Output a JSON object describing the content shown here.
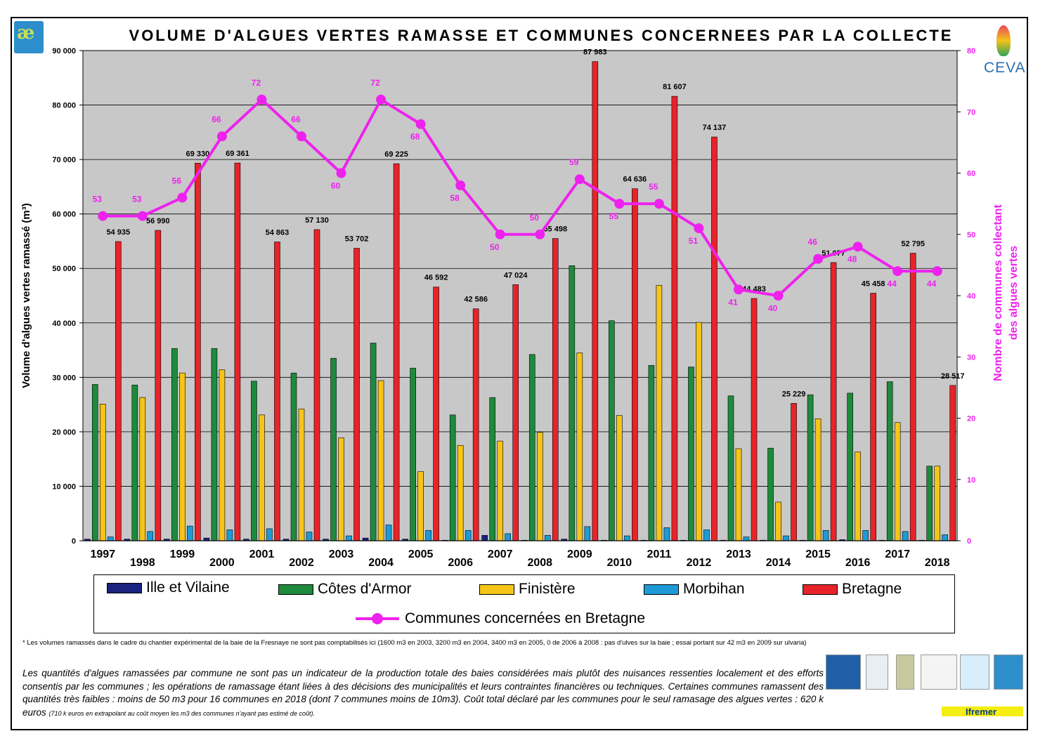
{
  "title": "VOLUME  D'ALGUES VERTES RAMASSE ET COMMUNES CONCERNEES PAR LA COLLECTE",
  "logos": {
    "ceva": "CEVA",
    "ifremer": "Ifremer"
  },
  "colors": {
    "ille": "#1a237e",
    "cotes": "#1e8a3c",
    "finistere": "#f5c518",
    "morbihan": "#1e9bd7",
    "bretagne": "#e8232a",
    "communes": "#ee22ee",
    "plot_bg": "#c8c8c8"
  },
  "chart_data": {
    "type": "bar",
    "title": "VOLUME  D'ALGUES VERTES RAMASSE ET COMMUNES CONCERNEES PAR LA COLLECTE",
    "ylabel": "Volume d'algues vertes ramassé (m³)",
    "y2label_line1": "Nombre de communes collectant",
    "y2label_line2": "des algues vertes",
    "ylim": [
      0,
      90000
    ],
    "y2lim": [
      0,
      80
    ],
    "yticks": [
      "0",
      "10 000",
      "20 000",
      "30 000",
      "40 000",
      "50 000",
      "60 000",
      "70 000",
      "80 000",
      "90 000"
    ],
    "y2ticks": [
      "0",
      "10",
      "20",
      "30",
      "40",
      "50",
      "60",
      "70",
      "80"
    ],
    "categories": [
      "1997",
      "1998",
      "1999",
      "2000",
      "2001",
      "2002",
      "2003",
      "2004",
      "2005",
      "2006",
      "2007",
      "2008",
      "2009",
      "2010",
      "2011",
      "2012",
      "2013",
      "2014",
      "2015",
      "2016",
      "2017",
      "2018"
    ],
    "series": [
      {
        "name": "Ille et Vilaine",
        "color_key": "ille",
        "values": [
          300,
          300,
          300,
          500,
          300,
          300,
          300,
          500,
          300,
          100,
          1000,
          100,
          300,
          100,
          100,
          100,
          100,
          100,
          100,
          200,
          100,
          100
        ]
      },
      {
        "name": "Côtes d'Armor",
        "color_key": "cotes",
        "values": [
          28700,
          28600,
          35300,
          35300,
          29300,
          30800,
          33500,
          36300,
          31700,
          23100,
          26300,
          34200,
          50500,
          40400,
          32200,
          31900,
          26600,
          17000,
          26800,
          27100,
          29200,
          13700
        ]
      },
      {
        "name": "Finistère",
        "color_key": "finistere",
        "values": [
          25100,
          26300,
          30800,
          31400,
          23100,
          24200,
          18900,
          29400,
          12700,
          17500,
          18300,
          19900,
          34500,
          23000,
          46900,
          40100,
          16900,
          7100,
          22400,
          16300,
          21700,
          13700
        ]
      },
      {
        "name": "Morbihan",
        "color_key": "morbihan",
        "values": [
          700,
          1700,
          2700,
          2000,
          2200,
          1600,
          900,
          2900,
          1900,
          1900,
          1300,
          1000,
          2600,
          900,
          2400,
          2000,
          700,
          900,
          1900,
          1900,
          1700,
          1100
        ]
      },
      {
        "name": "Bretagne",
        "color_key": "bretagne",
        "values": [
          54935,
          56990,
          69330,
          69361,
          54863,
          57130,
          53702,
          69225,
          46592,
          42586,
          47024,
          55498,
          87983,
          64636,
          81607,
          74137,
          44483,
          25229,
          51077,
          45458,
          52795,
          28517
        ]
      }
    ],
    "bretagne_labels": [
      "54 935",
      "56 990",
      "69 330",
      "69 361",
      "54 863",
      "57 130",
      "53 702",
      "69 225",
      "46 592",
      "42 586",
      "47 024",
      "55 498",
      "87 983",
      "64 636",
      "81 607",
      "74 137",
      "44 483",
      "25 229",
      "51 077",
      "45 458",
      "52 795",
      "28 517"
    ],
    "line_series": {
      "name": "Communes concernées en Bretagne",
      "color_key": "communes",
      "axis": "right",
      "values": [
        53,
        53,
        56,
        66,
        72,
        66,
        60,
        72,
        68,
        58,
        50,
        50,
        59,
        55,
        55,
        51,
        41,
        40,
        46,
        48,
        44,
        44
      ]
    },
    "legend_placement": "bottom",
    "grid": true
  },
  "footnote": "* Les volumes ramassés dans le cadre du chantier expérimental de la baie de la Fresnaye ne sont pas comptabilisés ici (1600 m3 en 2003, 3200 m3 en 2004, 3400 m3 en 2005, 0 de 2006 à 2008 : pas d'ulves sur la baie ; essai portant sur 42 m3 en 2009 sur ulvaria)",
  "paragraph": {
    "main": "Les quantités d'algues ramassées par commune ne sont pas un indicateur de la production totale des baies considérées mais plutôt des nuisances ressenties localement et des efforts consentis par les communes ; les opérations de ramassage étant liées à des décisions des municipalités et leurs contraintes financières ou techniques. Certaines communes ramassent des quantités très faibles : moins de 50 m3 pour 16 communes en 2018 (dont 7 communes moins de 10m3). Coût total déclaré par les communes pour le seul ramasage des algues vertes : 620 k euros ",
    "small": "(710 k euros en extrapolant au coût moyen les m3 des communes n'ayant pas estimé de coût)."
  }
}
